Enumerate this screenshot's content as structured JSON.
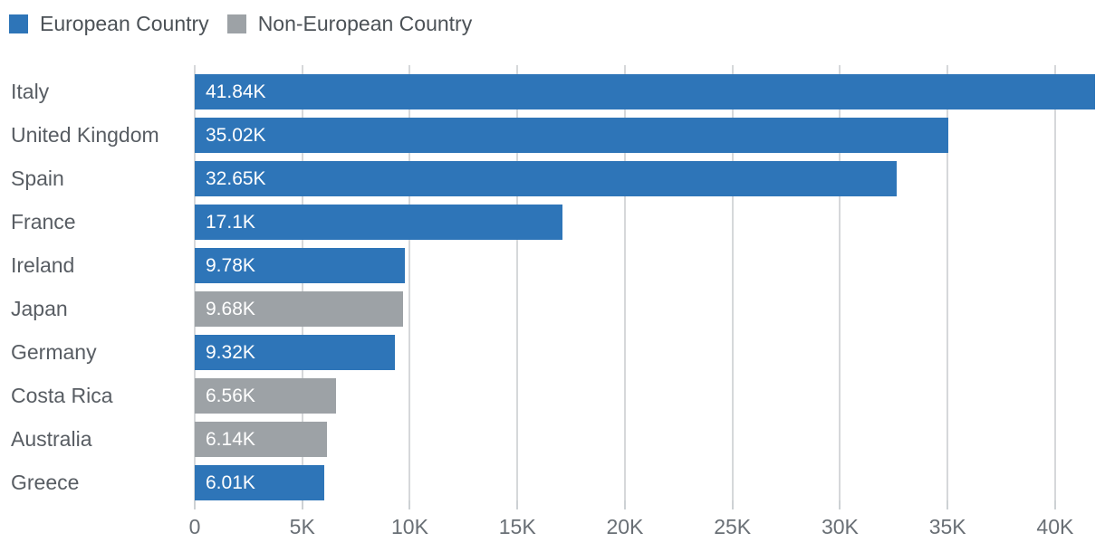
{
  "legend": {
    "items": [
      {
        "key": "european",
        "label": "European Country",
        "color": "#2e75b8"
      },
      {
        "key": "non_european",
        "label": "Non-European Country",
        "color": "#9da2a6"
      }
    ]
  },
  "chart_data": {
    "type": "bar",
    "orientation": "horizontal",
    "title": "",
    "categories": [
      "Italy",
      "United Kingdom",
      "Spain",
      "France",
      "Ireland",
      "Japan",
      "Germany",
      "Costa Rica",
      "Australia",
      "Greece"
    ],
    "values": [
      41840,
      35020,
      32650,
      17100,
      9780,
      9680,
      9320,
      6560,
      6140,
      6010
    ],
    "value_labels": [
      "41.84K",
      "35.02K",
      "32.65K",
      "17.1K",
      "9.78K",
      "9.68K",
      "9.32K",
      "6.56K",
      "6.14K",
      "6.01K"
    ],
    "series_key": [
      "european",
      "european",
      "european",
      "european",
      "european",
      "non_european",
      "european",
      "non_european",
      "non_european",
      "european"
    ],
    "colors": {
      "european": "#2e75b8",
      "non_european": "#9da2a6"
    },
    "x_ticks": [
      {
        "label": "0",
        "value": 0
      },
      {
        "label": "5K",
        "value": 5000
      },
      {
        "label": "10K",
        "value": 10000
      },
      {
        "label": "15K",
        "value": 15000
      },
      {
        "label": "20K",
        "value": 20000
      },
      {
        "label": "25K",
        "value": 25000
      },
      {
        "label": "30K",
        "value": 30000
      },
      {
        "label": "35K",
        "value": 35000
      },
      {
        "label": "40K",
        "value": 40000
      }
    ],
    "xlim": [
      0,
      42320
    ],
    "grid": "vertical",
    "legend_position": "top-left",
    "value_labels_position": "inside-start",
    "bar_label_color": "#ffffff"
  }
}
